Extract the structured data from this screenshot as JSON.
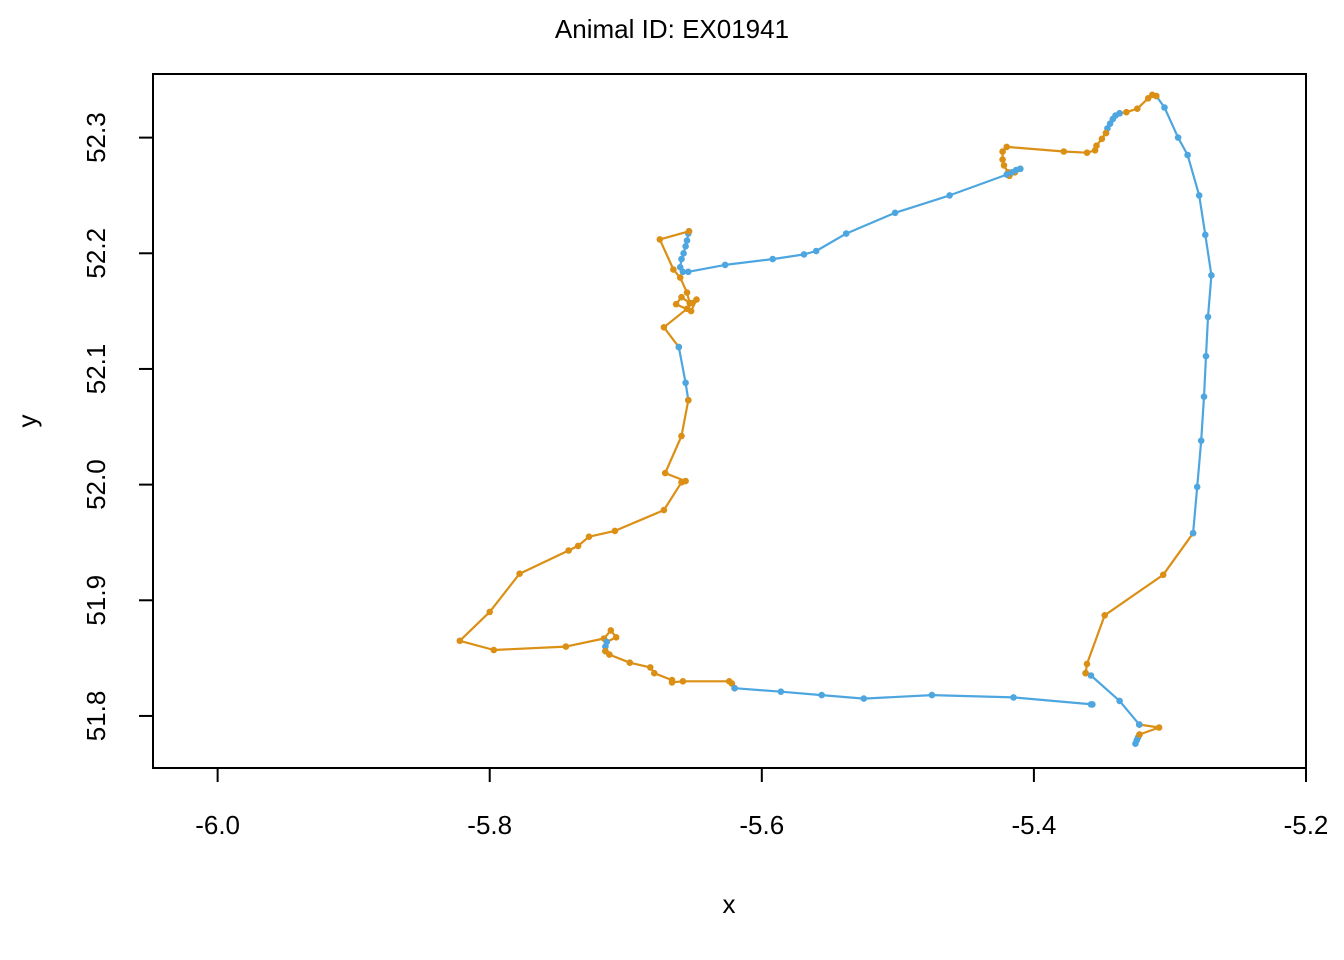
{
  "chart_data": {
    "type": "line",
    "title": "Animal ID: EX01941",
    "xlabel": "x",
    "ylabel": "y",
    "xlim": [
      -6.0475,
      -5.2
    ],
    "ylim": [
      51.755,
      52.355
    ],
    "x_ticks": [
      -6.0,
      -5.8,
      -5.6,
      -5.4,
      -5.2
    ],
    "x_tick_labels": [
      "-6.0",
      "-5.8",
      "-5.6",
      "-5.4",
      "-5.2"
    ],
    "y_ticks": [
      51.8,
      51.9,
      52.0,
      52.1,
      52.2,
      52.3
    ],
    "y_tick_labels": [
      "51.8",
      "51.9",
      "52.0",
      "52.1",
      "52.2",
      "52.3"
    ],
    "grid": false,
    "legend": "none",
    "colors": {
      "blue": "#4DA6E0",
      "orange": "#DB8F14"
    },
    "series": [
      {
        "color": "blue",
        "points": [
          [
            -5.3254,
            51.776
          ],
          [
            -5.3244,
            51.779
          ],
          [
            -5.3234,
            51.7815
          ],
          [
            -5.3224,
            51.784
          ]
        ]
      },
      {
        "color": "orange",
        "points": [
          [
            -5.3224,
            51.784
          ],
          [
            -5.308,
            51.79
          ],
          [
            -5.3225,
            51.7925
          ]
        ]
      },
      {
        "color": "blue",
        "points": [
          [
            -5.3225,
            51.7925
          ],
          [
            -5.337,
            51.813
          ],
          [
            -5.358,
            51.835
          ],
          [
            -5.362,
            51.837
          ]
        ]
      },
      {
        "color": "orange",
        "points": [
          [
            -5.362,
            51.837
          ],
          [
            -5.361,
            51.845
          ],
          [
            -5.348,
            51.887
          ],
          [
            -5.305,
            51.922
          ],
          [
            -5.283,
            51.958
          ]
        ]
      },
      {
        "color": "blue",
        "points": [
          [
            -5.283,
            51.958
          ],
          [
            -5.28,
            51.998
          ],
          [
            -5.277,
            52.038
          ],
          [
            -5.275,
            52.076
          ],
          [
            -5.2735,
            52.111
          ],
          [
            -5.272,
            52.145
          ],
          [
            -5.2695,
            52.181
          ],
          [
            -5.274,
            52.216
          ],
          [
            -5.2785,
            52.25
          ],
          [
            -5.287,
            52.285
          ],
          [
            -5.294,
            52.3
          ],
          [
            -5.304,
            52.326
          ],
          [
            -5.31,
            52.336
          ]
        ]
      },
      {
        "color": "orange",
        "points": [
          [
            -5.31,
            52.336
          ],
          [
            -5.313,
            52.337
          ],
          [
            -5.316,
            52.334
          ],
          [
            -5.324,
            52.325
          ],
          [
            -5.332,
            52.322
          ],
          [
            -5.337,
            52.321
          ]
        ]
      },
      {
        "color": "blue",
        "points": [
          [
            -5.337,
            52.321
          ],
          [
            -5.34,
            52.319
          ],
          [
            -5.342,
            52.316
          ],
          [
            -5.344,
            52.312
          ],
          [
            -5.346,
            52.308
          ],
          [
            -5.347,
            52.304
          ]
        ]
      },
      {
        "color": "orange",
        "points": [
          [
            -5.347,
            52.304
          ],
          [
            -5.35,
            52.299
          ],
          [
            -5.354,
            52.293
          ],
          [
            -5.355,
            52.289
          ],
          [
            -5.361,
            52.287
          ],
          [
            -5.378,
            52.288
          ],
          [
            -5.42,
            52.292
          ],
          [
            -5.423,
            52.288
          ],
          [
            -5.423,
            52.281
          ],
          [
            -5.422,
            52.276
          ],
          [
            -5.419,
            52.27
          ],
          [
            -5.418,
            52.267
          ],
          [
            -5.414,
            52.27
          ],
          [
            -5.41,
            52.273
          ]
        ]
      },
      {
        "color": "blue",
        "points": [
          [
            -5.41,
            52.273
          ],
          [
            -5.413,
            52.272
          ],
          [
            -5.416,
            52.27
          ],
          [
            -5.42,
            52.268
          ],
          [
            -5.462,
            52.25
          ],
          [
            -5.502,
            52.235
          ],
          [
            -5.538,
            52.217
          ],
          [
            -5.56,
            52.202
          ],
          [
            -5.569,
            52.199
          ],
          [
            -5.592,
            52.195
          ],
          [
            -5.627,
            52.19
          ],
          [
            -5.654,
            52.184
          ],
          [
            -5.658,
            52.184
          ],
          [
            -5.66,
            52.188
          ],
          [
            -5.659,
            52.195
          ],
          [
            -5.6575,
            52.2
          ],
          [
            -5.656,
            52.206
          ],
          [
            -5.655,
            52.211
          ],
          [
            -5.654,
            52.217
          ],
          [
            -5.6535,
            52.219
          ]
        ]
      },
      {
        "color": "orange",
        "points": [
          [
            -5.6535,
            52.219
          ],
          [
            -5.675,
            52.212
          ],
          [
            -5.665,
            52.186
          ],
          [
            -5.66,
            52.179
          ],
          [
            -5.655,
            52.166
          ],
          [
            -5.653,
            52.157
          ],
          [
            -5.659,
            52.162
          ],
          [
            -5.663,
            52.156
          ],
          [
            -5.652,
            52.15
          ],
          [
            -5.648,
            52.16
          ],
          [
            -5.651,
            52.157
          ],
          [
            -5.655,
            52.152
          ],
          [
            -5.672,
            52.136
          ],
          [
            -5.661,
            52.119
          ]
        ]
      },
      {
        "color": "blue",
        "points": [
          [
            -5.661,
            52.119
          ],
          [
            -5.656,
            52.088
          ],
          [
            -5.654,
            52.073
          ]
        ]
      },
      {
        "color": "orange",
        "points": [
          [
            -5.654,
            52.073
          ],
          [
            -5.659,
            52.042
          ],
          [
            -5.671,
            52.01
          ],
          [
            -5.656,
            52.003
          ],
          [
            -5.659,
            52.002
          ],
          [
            -5.672,
            51.978
          ],
          [
            -5.708,
            51.96
          ],
          [
            -5.727,
            51.955
          ],
          [
            -5.735,
            51.947
          ],
          [
            -5.742,
            51.943
          ],
          [
            -5.778,
            51.923
          ],
          [
            -5.8,
            51.89
          ],
          [
            -5.822,
            51.865
          ],
          [
            -5.797,
            51.857
          ],
          [
            -5.744,
            51.86
          ],
          [
            -5.716,
            51.867
          ],
          [
            -5.711,
            51.874
          ],
          [
            -5.707,
            51.868
          ],
          [
            -5.714,
            51.864
          ]
        ]
      },
      {
        "color": "blue",
        "points": [
          [
            -5.714,
            51.864
          ],
          [
            -5.715,
            51.86
          ],
          [
            -5.715,
            51.856
          ]
        ]
      },
      {
        "color": "orange",
        "points": [
          [
            -5.715,
            51.856
          ],
          [
            -5.712,
            51.853
          ],
          [
            -5.697,
            51.846
          ],
          [
            -5.682,
            51.842
          ],
          [
            -5.679,
            51.837
          ],
          [
            -5.666,
            51.831
          ],
          [
            -5.666,
            51.829
          ],
          [
            -5.658,
            51.83
          ],
          [
            -5.624,
            51.83
          ],
          [
            -5.622,
            51.828
          ],
          [
            -5.62,
            51.824
          ]
        ]
      },
      {
        "color": "blue",
        "points": [
          [
            -5.62,
            51.824
          ],
          [
            -5.586,
            51.821
          ],
          [
            -5.556,
            51.818
          ],
          [
            -5.525,
            51.815
          ],
          [
            -5.475,
            51.818
          ],
          [
            -5.415,
            51.816
          ],
          [
            -5.357,
            51.81
          ],
          [
            -5.358,
            51.81
          ]
        ]
      }
    ]
  }
}
